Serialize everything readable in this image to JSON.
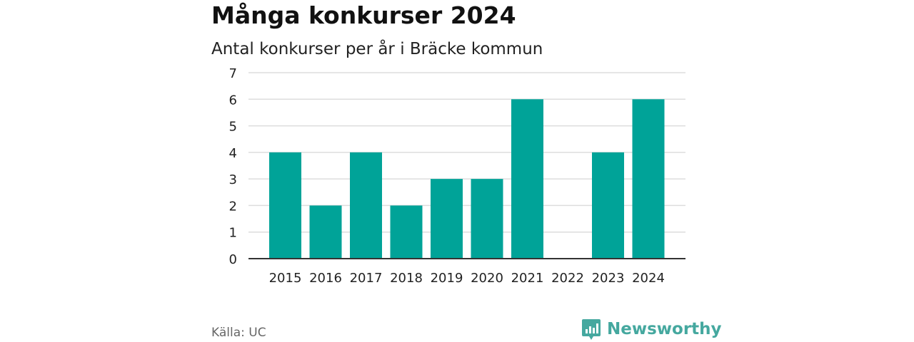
{
  "title": "Många konkurser 2024",
  "subtitle": "Antal konkurser per år i Bräcke kommun",
  "source": "Källa: UC",
  "brand": {
    "name": "Newsworthy",
    "color": "#45a89f",
    "icon": "bar-chart-logo-icon"
  },
  "colors": {
    "bar": "#00a398",
    "grid": "#dddddd",
    "axis": "#333333"
  },
  "chart_data": {
    "type": "bar",
    "title": "Många konkurser 2024",
    "subtitle": "Antal konkurser per år i Bräcke kommun",
    "xlabel": "",
    "ylabel": "",
    "categories": [
      "2015",
      "2016",
      "2017",
      "2018",
      "2019",
      "2020",
      "2021",
      "2022",
      "2023",
      "2024"
    ],
    "values": [
      4,
      2,
      4,
      2,
      3,
      3,
      6,
      0,
      4,
      6
    ],
    "ylim": [
      0,
      7
    ],
    "yticks": [
      0,
      1,
      2,
      3,
      4,
      5,
      6,
      7
    ],
    "grid": true,
    "legend": "none"
  }
}
